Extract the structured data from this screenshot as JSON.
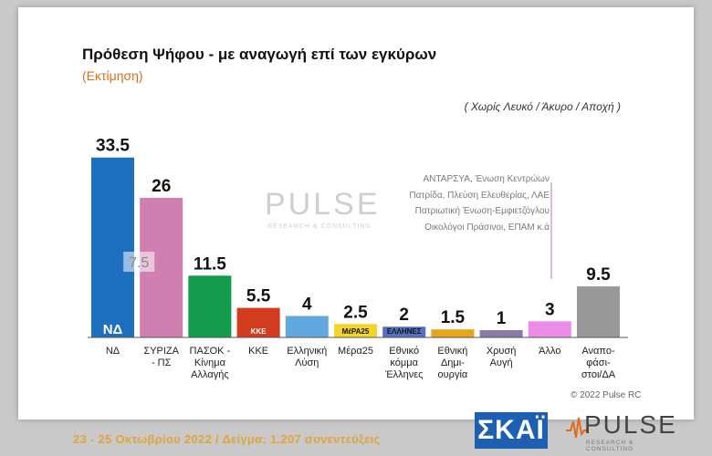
{
  "chart_data": {
    "type": "bar",
    "title": "Πρόθεση Ψήφου - με αναγωγή επί των εγκύρων",
    "subtitle": "(Εκτίμηση)",
    "note": "( Χωρίς Λευκό / Άκυρο / Αποχή )",
    "categories": [
      [
        "ΝΔ"
      ],
      [
        "ΣΥΡΙΖΑ",
        "- ΠΣ"
      ],
      [
        "ΠΑΣΟΚ -",
        "Κίνημα",
        "Αλλαγής"
      ],
      [
        "ΚΚΕ"
      ],
      [
        "Ελληνική",
        "Λύση"
      ],
      [
        "Μέρα25"
      ],
      [
        "Εθνικό",
        "κόμμα",
        "Έλληνες"
      ],
      [
        "Εθνική",
        "Δημι-",
        "ουργία"
      ],
      [
        "Χρυσή",
        "Αυγή"
      ],
      [
        "Άλλο"
      ],
      [
        "Αναπο-",
        "φάσι-",
        "στοι/ΔΑ"
      ]
    ],
    "values": [
      33.5,
      26,
      11.5,
      5.5,
      4,
      2.5,
      2,
      1.5,
      1,
      3,
      9.5
    ],
    "value_labels": [
      "33.5",
      "26",
      "11.5",
      "5.5",
      "4",
      "2.5",
      "2",
      "1.5",
      "1",
      "3",
      "9.5"
    ],
    "colors": [
      "#1f6fc0",
      "#cf7fb0",
      "#149a4c",
      "#d23c1e",
      "#62a8de",
      "#f4d52a",
      "#5570c2",
      "#e8a41c",
      "#8b7aa8",
      "#ec8be8",
      "#999999"
    ],
    "annotation": {
      "category_index": 1,
      "text": "7.5"
    },
    "ylim": [
      0,
      36
    ],
    "grid": false
  },
  "other_parties": [
    "ΑΝΤΑΡΣΥΑ, Ένωση Κεντρώων",
    "Πατρίδα, Πλεύση Ελευθερίας, ΛΑΕ",
    "Πατριωτική Ένωση-Εμφιετζόγλου",
    "Οικολόγοι Πράσινοι, ΕΠΑΜ  κ.ά"
  ],
  "copyright": "© 2022 Pulse RC",
  "footer": "23 - 25  Οκτωβρίου  2022  /  Δείγμα:  1.207 συνεντεύξεις",
  "logos": {
    "skai": "ΣΚΑΪ",
    "pulse": "PULSE",
    "pulse_tag": "RESEARCH & CONSULTING",
    "party_icons": [
      "ΝΔ",
      "",
      "",
      "ΚΚΕ",
      "",
      "ΜέΡΑ25",
      "ΕΛΛΗΝΕΣ",
      "",
      "",
      "",
      ""
    ]
  }
}
